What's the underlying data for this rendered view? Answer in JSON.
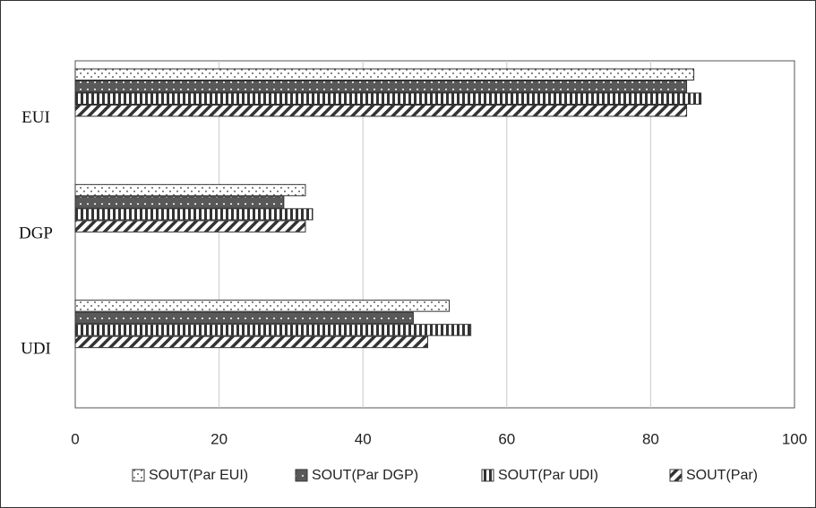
{
  "chart_data": {
    "type": "bar",
    "orientation": "horizontal",
    "categories": [
      "EUI",
      "DGP",
      "UDI"
    ],
    "series": [
      {
        "name": "SOUT(Par EUI)",
        "color": "#ffffff",
        "values": [
          86,
          32,
          52
        ]
      },
      {
        "name": "SOUT(Par DGP)",
        "color": "#595959",
        "values": [
          85,
          29,
          47
        ]
      },
      {
        "name": "SOUT(Par UDI)",
        "color": "#ffffff",
        "values": [
          87,
          33,
          55
        ]
      },
      {
        "name": "SOUT(Par)",
        "color": "#ffffff",
        "values": [
          85,
          32,
          49
        ]
      }
    ],
    "xlim": [
      0,
      100
    ],
    "xticks": [
      0,
      20,
      40,
      60,
      80,
      100
    ],
    "grid": true,
    "legend": "bottom"
  }
}
